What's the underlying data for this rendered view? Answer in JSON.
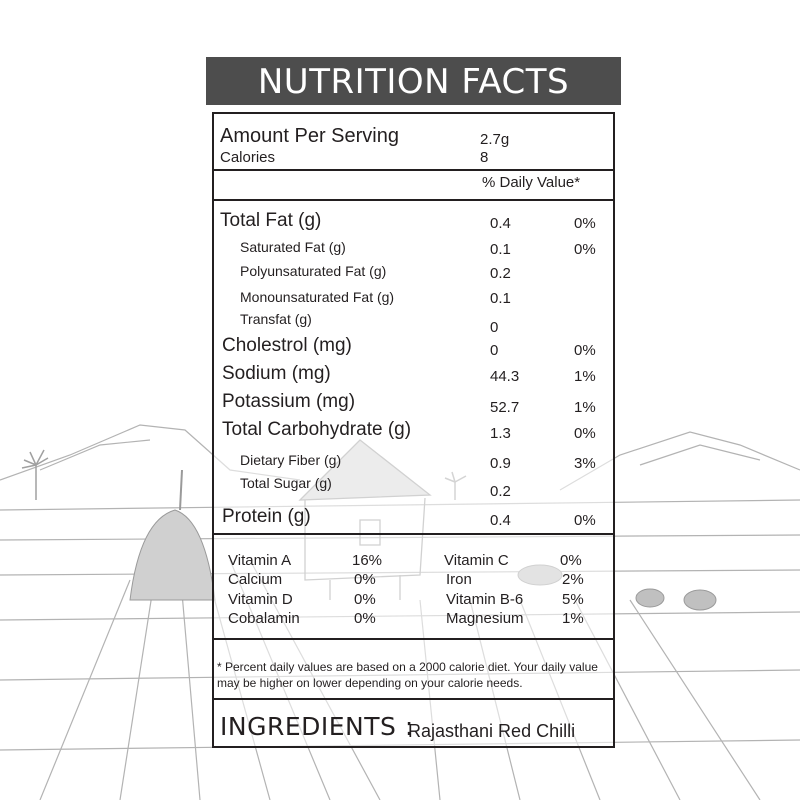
{
  "title": "NUTRITION FACTS",
  "serving": {
    "amount_label": "Amount Per Serving",
    "amount_value": "2.7g",
    "calories_label": "Calories",
    "calories_value": "8"
  },
  "daily_value_header": "% Daily Value*",
  "nutrients": [
    {
      "label": "Total Fat (g)",
      "amount": "0.4",
      "dv": "0%"
    },
    {
      "label": "Saturated Fat (g)",
      "amount": "0.1",
      "dv": "0%"
    },
    {
      "label": "Polyunsaturated Fat (g)",
      "amount": "0.2",
      "dv": ""
    },
    {
      "label": "Monounsaturated Fat (g)",
      "amount": "0.1",
      "dv": ""
    },
    {
      "label": "Transfat (g)",
      "amount": "0",
      "dv": ""
    },
    {
      "label": "Cholestrol (mg)",
      "amount": "0",
      "dv": "0%"
    },
    {
      "label": "Sodium (mg)",
      "amount": "44.3",
      "dv": "1%"
    },
    {
      "label": "Potassium (mg)",
      "amount": "52.7",
      "dv": "1%"
    },
    {
      "label": "Total Carbohydrate (g)",
      "amount": "1.3",
      "dv": "0%"
    },
    {
      "label": "Dietary Fiber (g)",
      "amount": "0.9",
      "dv": "3%"
    },
    {
      "label": "Total Sugar (g)",
      "amount": "0.2",
      "dv": ""
    },
    {
      "label": "Protein (g)",
      "amount": "0.4",
      "dv": "0%"
    }
  ],
  "vitamins": [
    {
      "label": "Vitamin A",
      "value": "16%"
    },
    {
      "label": "Calcium",
      "value": "0%"
    },
    {
      "label": "Vitamin D",
      "value": "0%"
    },
    {
      "label": "Cobalamin",
      "value": "0%"
    },
    {
      "label": "Vitamin C",
      "value": "0%"
    },
    {
      "label": "Iron",
      "value": "2%"
    },
    {
      "label": "Vitamin B-6",
      "value": "5%"
    },
    {
      "label": "Magnesium",
      "value": "1%"
    }
  ],
  "footnote": "* Percent daily values are based on a 2000 calorie diet. Your daily value may be higher on lower depending on your calorie needs.",
  "ingredients": {
    "label": "INGREDIENTS :",
    "value": "Rajasthani Red Chilli"
  },
  "colors": {
    "title_bar": "#4d4d4d",
    "text": "#231f20",
    "sketch": "#a8a8a8"
  }
}
